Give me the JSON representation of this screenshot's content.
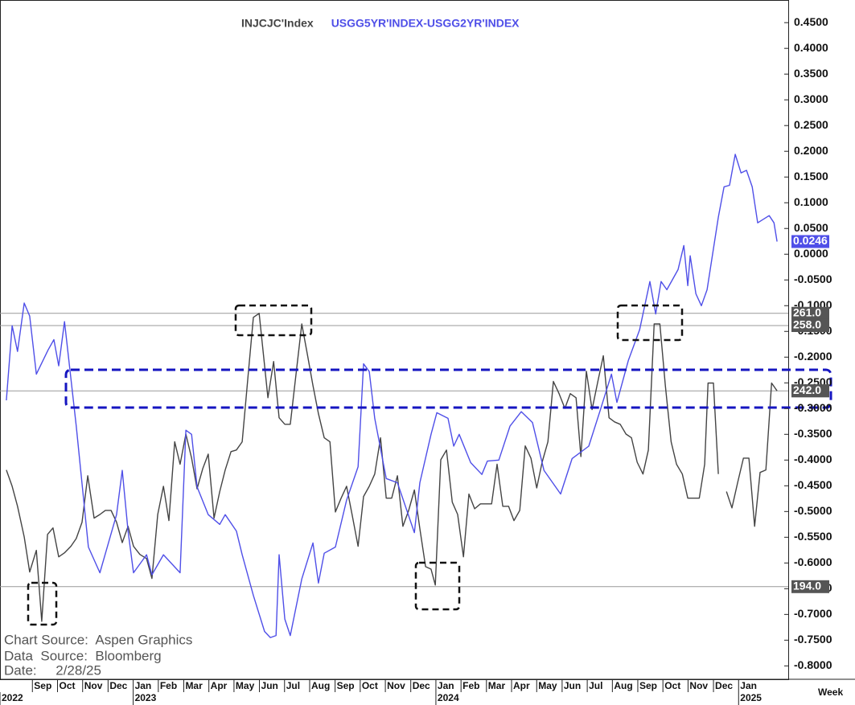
{
  "chart_data": {
    "type": "line",
    "x_label": "Week",
    "footer": [
      "Chart Source:  Aspen Graphics",
      "Data  Source:  Bloomberg",
      "Date:     2/28/25"
    ],
    "xlim": [
      2022.56,
      2025.164
    ],
    "xticks": [
      {
        "value": 2022.667,
        "label": "Sep"
      },
      {
        "value": 2022.75,
        "label": "Oct"
      },
      {
        "value": 2022.833,
        "label": "Nov"
      },
      {
        "value": 2022.917,
        "label": "Dec"
      },
      {
        "value": 2023.0,
        "label": "Jan"
      },
      {
        "value": 2023.083,
        "label": "Feb"
      },
      {
        "value": 2023.167,
        "label": "Mar"
      },
      {
        "value": 2023.25,
        "label": "Apr"
      },
      {
        "value": 2023.333,
        "label": "May"
      },
      {
        "value": 2023.417,
        "label": "Jun"
      },
      {
        "value": 2023.5,
        "label": "Jul"
      },
      {
        "value": 2023.583,
        "label": "Aug"
      },
      {
        "value": 2023.667,
        "label": "Sep"
      },
      {
        "value": 2023.75,
        "label": "Oct"
      },
      {
        "value": 2023.833,
        "label": "Nov"
      },
      {
        "value": 2023.917,
        "label": "Dec"
      },
      {
        "value": 2024.0,
        "label": "Jan"
      },
      {
        "value": 2024.083,
        "label": "Feb"
      },
      {
        "value": 2024.167,
        "label": "Mar"
      },
      {
        "value": 2024.25,
        "label": "Apr"
      },
      {
        "value": 2024.333,
        "label": "May"
      },
      {
        "value": 2024.417,
        "label": "Jun"
      },
      {
        "value": 2024.5,
        "label": "Jul"
      },
      {
        "value": 2024.583,
        "label": "Aug"
      },
      {
        "value": 2024.667,
        "label": "Sep"
      },
      {
        "value": 2024.75,
        "label": "Oct"
      },
      {
        "value": 2024.833,
        "label": "Nov"
      },
      {
        "value": 2024.917,
        "label": "Dec"
      },
      {
        "value": 2025.0,
        "label": "Jan"
      }
    ],
    "year_ticks": [
      {
        "value": 2022.56,
        "label": "2022"
      },
      {
        "value": 2023.0,
        "label": "2023"
      },
      {
        "value": 2024.0,
        "label": "2024"
      },
      {
        "value": 2025.0,
        "label": "2025"
      }
    ],
    "ylim": [
      -0.826,
      0.494
    ],
    "yticks": [
      {
        "value": 0.45,
        "label": "0.4500"
      },
      {
        "value": 0.4,
        "label": "0.4000"
      },
      {
        "value": 0.35,
        "label": "0.3500"
      },
      {
        "value": 0.3,
        "label": "0.3000"
      },
      {
        "value": 0.25,
        "label": "0.2500"
      },
      {
        "value": 0.2,
        "label": "0.2000"
      },
      {
        "value": 0.15,
        "label": "0.1500"
      },
      {
        "value": 0.1,
        "label": "0.1000"
      },
      {
        "value": 0.05,
        "label": "0.0500"
      },
      {
        "value": 0,
        "label": "0.0000"
      },
      {
        "value": -0.05,
        "label": "-0.0500"
      },
      {
        "value": -0.1,
        "label": "-0.1000"
      },
      {
        "value": -0.15,
        "label": "-0.1500"
      },
      {
        "value": -0.2,
        "label": "-0.2000"
      },
      {
        "value": -0.25,
        "label": "-0.2500"
      },
      {
        "value": -0.3,
        "label": "-0.3000"
      },
      {
        "value": -0.35,
        "label": "-0.3500"
      },
      {
        "value": -0.4,
        "label": "-0.4000"
      },
      {
        "value": -0.45,
        "label": "-0.4500"
      },
      {
        "value": -0.5,
        "label": "-0.5000"
      },
      {
        "value": -0.55,
        "label": "-0.5500"
      },
      {
        "value": -0.6,
        "label": "-0.6000"
      },
      {
        "value": -0.65,
        "label": "-0.6500"
      },
      {
        "value": -0.7,
        "label": "-0.7000"
      },
      {
        "value": -0.75,
        "label": "-0.7500"
      },
      {
        "value": -0.8,
        "label": "-0.8000"
      }
    ],
    "y2lim": [
      171.3,
      337.8
    ],
    "y2_lines": [
      {
        "value": 261,
        "label": "261.0"
      },
      {
        "value": 258,
        "label": "258.0"
      },
      {
        "value": 242,
        "label": "242.0"
      },
      {
        "value": 194,
        "label": "194.0"
      }
    ],
    "series": [
      {
        "name": "INJCJC'Index",
        "color": "#444444",
        "axis": "y2",
        "last_label": "242.0",
        "x": [
          2022.581,
          2022.6,
          2022.618,
          2022.64,
          2022.658,
          2022.68,
          2022.698,
          2022.717,
          2022.735,
          2022.754,
          2022.773,
          2022.794,
          2022.812,
          2022.831,
          2022.85,
          2022.871,
          2022.89,
          2022.908,
          2022.927,
          2022.945,
          2022.964,
          2022.983,
          2023.001,
          2023.022,
          2023.044,
          2023.062,
          2023.081,
          2023.1,
          2023.118,
          2023.137,
          2023.155,
          2023.174,
          2023.193,
          2023.211,
          2023.23,
          2023.248,
          2023.267,
          2023.286,
          2023.304,
          2023.323,
          2023.341,
          2023.36,
          2023.379,
          2023.397,
          2023.416,
          2023.445,
          2023.464,
          2023.482,
          2023.501,
          2023.519,
          2023.557,
          2023.575,
          2023.594,
          2023.612,
          2023.631,
          2023.65,
          2023.668,
          2023.687,
          2023.705,
          2023.724,
          2023.743,
          2023.761,
          2023.78,
          2023.798,
          2023.817,
          2023.836,
          2023.854,
          2023.873,
          2023.891,
          2023.91,
          2023.929,
          2023.947,
          2023.966,
          2023.984,
          2023.998,
          2024.016,
          2024.035,
          2024.054,
          2024.072,
          2024.091,
          2024.109,
          2024.128,
          2024.147,
          2024.165,
          2024.184,
          2024.202,
          2024.221,
          2024.24,
          2024.258,
          2024.277,
          2024.295,
          2024.314,
          2024.333,
          2024.351,
          2024.37,
          2024.388,
          2024.407,
          2024.426,
          2024.444,
          2024.463,
          2024.479,
          2024.497,
          2024.516,
          2024.535,
          2024.553,
          2024.572,
          2024.59,
          2024.609,
          2024.628,
          2024.646,
          2024.665,
          2024.684,
          2024.702,
          2024.721,
          2024.74,
          2024.758,
          2024.777,
          2024.795,
          2024.814,
          2024.832,
          2024.851,
          2024.87,
          2024.888,
          2024.899,
          2024.917,
          2024.933,
          2024.947,
          2024.96,
          2024.978,
          2024.997,
          2025.016,
          2025.034,
          2025.053,
          2025.071,
          2025.09,
          2025.109,
          2025.127
        ],
        "values": [
          222.6,
          218.6,
          213.7,
          206.2,
          197.6,
          202.9,
          185.5,
          206.8,
          208.4,
          201.3,
          202.3,
          203.9,
          205.8,
          209.8,
          221.2,
          210.8,
          211.7,
          212.7,
          212.7,
          209.8,
          204.8,
          208.8,
          203.9,
          201.9,
          200.9,
          196.0,
          211.7,
          218.6,
          210.2,
          229.5,
          224.0,
          231.4,
          225.5,
          218.0,
          223.0,
          226.5,
          210.8,
          217.3,
          222.6,
          227.1,
          227.5,
          229.5,
          245.2,
          260.0,
          261.0,
          240.3,
          249.2,
          235.4,
          233.8,
          233.8,
          258.4,
          251.1,
          243.3,
          236.4,
          230.5,
          229.5,
          212.3,
          215.7,
          218.6,
          211.3,
          203.9,
          216.1,
          218.6,
          221.6,
          230.5,
          215.7,
          215.7,
          221.2,
          208.8,
          212.7,
          217.7,
          208.2,
          198.9,
          198.3,
          194.4,
          225.1,
          227.5,
          214.7,
          211.7,
          201.3,
          216.7,
          213.1,
          214.3,
          214.3,
          214.3,
          224.0,
          213.7,
          213.7,
          210.2,
          212.7,
          228.5,
          225.5,
          218.2,
          224.5,
          229.5,
          244.3,
          241.3,
          237.7,
          241.3,
          240.3,
          225.9,
          246.8,
          237.4,
          244.3,
          250.6,
          235.4,
          234.4,
          233.8,
          231.4,
          230.5,
          224.5,
          221.6,
          227.5,
          258.4,
          258.4,
          243.3,
          229.5,
          224.0,
          221.6,
          215.7,
          215.7,
          215.7,
          224.0,
          243.9,
          243.9,
          221.6,
          null,
          217.3,
          213.3,
          219.6,
          225.5,
          225.5,
          208.8,
          222.0,
          222.6,
          243.9,
          242
        ]
      },
      {
        "name": "USGG5YR'INDEX-USGG2YR'INDEX",
        "color": "#4f4fe8",
        "last_label": "0.0246",
        "x": [
          2022.581,
          2022.6,
          2022.618,
          2022.64,
          2022.658,
          2022.68,
          2022.719,
          2022.738,
          2022.754,
          2022.773,
          2022.812,
          2022.852,
          2022.89,
          2022.945,
          2022.964,
          2022.983,
          2023.001,
          2023.044,
          2023.062,
          2023.1,
          2023.155,
          2023.174,
          2023.193,
          2023.211,
          2023.248,
          2023.286,
          2023.304,
          2023.341,
          2023.36,
          2023.397,
          2023.434,
          2023.453,
          2023.472,
          2023.482,
          2023.501,
          2023.519,
          2023.557,
          2023.594,
          2023.612,
          2023.631,
          2023.668,
          2023.705,
          2023.743,
          2023.761,
          2023.78,
          2023.798,
          2023.836,
          2023.873,
          2023.929,
          2023.947,
          2023.984,
          2024.003,
          2024.04,
          2024.059,
          2024.077,
          2024.115,
          2024.152,
          2024.17,
          2024.208,
          2024.245,
          2024.282,
          2024.319,
          2024.357,
          2024.412,
          2024.45,
          2024.505,
          2024.543,
          2024.58,
          2024.598,
          2024.636,
          2024.673,
          2024.707,
          2024.726,
          2024.744,
          2024.763,
          2024.8,
          2024.819,
          2024.832,
          2024.84,
          2024.859,
          2024.877,
          2024.896,
          2024.933,
          2024.952,
          2024.97,
          2024.989,
          2025.008,
          2025.026,
          2025.045,
          2025.063,
          2025.101,
          2025.117,
          2025.127
        ],
        "values": [
          -0.284,
          -0.139,
          -0.189,
          -0.095,
          -0.12,
          -0.233,
          -0.186,
          -0.166,
          -0.217,
          -0.131,
          -0.334,
          -0.569,
          -0.619,
          -0.506,
          -0.42,
          -0.538,
          -0.619,
          -0.584,
          -0.623,
          -0.584,
          -0.619,
          -0.342,
          -0.35,
          -0.452,
          -0.506,
          -0.525,
          -0.506,
          -0.538,
          -0.584,
          -0.663,
          -0.733,
          -0.745,
          -0.741,
          -0.584,
          -0.709,
          -0.741,
          -0.631,
          -0.561,
          -0.639,
          -0.581,
          -0.569,
          -0.478,
          -0.413,
          -0.213,
          -0.228,
          -0.319,
          -0.436,
          -0.444,
          -0.541,
          -0.444,
          -0.35,
          -0.308,
          -0.319,
          -0.373,
          -0.35,
          -0.405,
          -0.428,
          -0.402,
          -0.4,
          -0.334,
          -0.306,
          -0.327,
          -0.42,
          -0.466,
          -0.397,
          -0.373,
          -0.303,
          -0.233,
          -0.288,
          -0.206,
          -0.147,
          -0.053,
          -0.116,
          -0.053,
          -0.069,
          -0.03,
          0.017,
          -0.061,
          -0.003,
          -0.077,
          -0.1,
          -0.069,
          0.072,
          0.131,
          0.134,
          0.194,
          0.158,
          0.163,
          0.131,
          0.061,
          0.075,
          0.061,
          0.0246
        ]
      }
    ]
  }
}
